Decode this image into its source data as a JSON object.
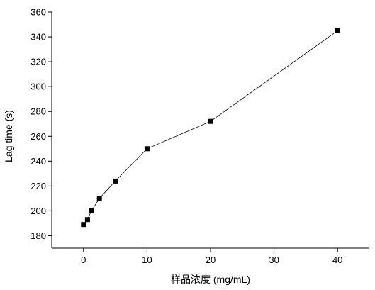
{
  "chart_data": {
    "type": "line",
    "title": "",
    "xlabel": "样品浓度 (mg/mL)",
    "ylabel": "Lag time (s)",
    "xlim": [
      -5,
      45
    ],
    "ylim": [
      170,
      360
    ],
    "x_ticks": [
      0,
      10,
      20,
      30,
      40
    ],
    "y_ticks": [
      180,
      200,
      220,
      240,
      260,
      280,
      300,
      320,
      340,
      360
    ],
    "grid": false,
    "legend": "none",
    "marker": "square",
    "line_color": "#000000",
    "series": [
      {
        "x": [
          0,
          0.625,
          1.25,
          2.5,
          5,
          10,
          20,
          40
        ],
        "y": [
          189,
          193,
          200,
          210,
          224,
          250,
          272,
          345
        ]
      }
    ]
  }
}
